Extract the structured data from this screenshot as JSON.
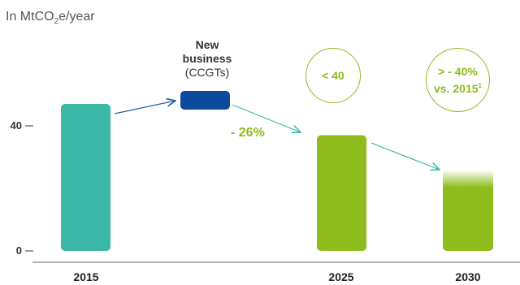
{
  "chart_data": {
    "type": "bar",
    "unit_label": {
      "prefix": "In MtCO",
      "sub": "2",
      "suffix": "e/year"
    },
    "yticks": [
      {
        "label": "40",
        "value": 40
      },
      {
        "label": "0",
        "value": 0
      }
    ],
    "ylim": [
      0,
      50
    ],
    "categories": [
      "2015",
      "2025",
      "2030"
    ],
    "bars": [
      {
        "category": "2015",
        "value": 47,
        "color": "#3ab7a7"
      },
      {
        "category": "New business (CCGTs)",
        "base": 47,
        "value": 3,
        "color": "#0b4a9c",
        "floating": true
      },
      {
        "category": "2025",
        "value": 37,
        "color": "#8ebc1d"
      },
      {
        "category": "2030",
        "value": 26,
        "color": "#8ebc1d",
        "faded_top": true
      }
    ],
    "annotations": {
      "new_business_title": "New",
      "new_business_title2": "business",
      "new_business_sub": "(CCGTs)",
      "change_label": "- 26%",
      "circle_2025": "< 40",
      "circle_2030_line1": "> - 40%",
      "circle_2030_line2": "vs. 2015",
      "circle_2030_sup": "1"
    },
    "colors": {
      "teal": "#3ab7a7",
      "navy": "#0b4a9c",
      "green": "#8ebc1d",
      "arrow_navy": "#1f5a9e",
      "arrow_teal": "#3ab7a7"
    }
  }
}
